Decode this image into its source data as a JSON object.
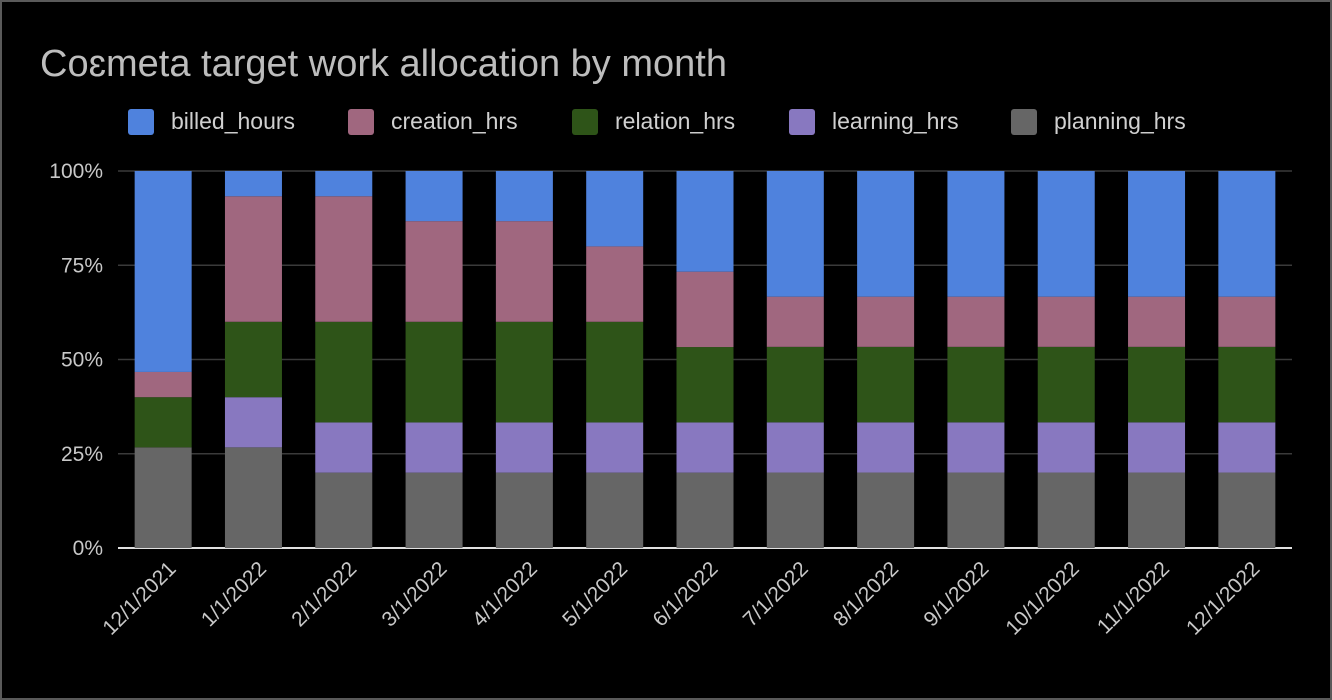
{
  "chart_data": {
    "type": "bar",
    "stacked": true,
    "normalized": true,
    "title": "Coɛmeta target work allocation by month",
    "xlabel": "",
    "ylabel": "",
    "ylim": [
      0,
      1
    ],
    "y_ticks": [
      "0%",
      "25%",
      "50%",
      "75%",
      "100%"
    ],
    "grid": true,
    "legend_position": "top",
    "categories": [
      "12/1/2021",
      "1/1/2022",
      "2/1/2022",
      "3/1/2022",
      "4/1/2022",
      "5/1/2022",
      "6/1/2022",
      "7/1/2022",
      "8/1/2022",
      "9/1/2022",
      "10/1/2022",
      "11/1/2022",
      "12/1/2022"
    ],
    "series": [
      {
        "name": "planning_hrs",
        "color": "#666666",
        "values": [
          0.267,
          0.267,
          0.2,
          0.2,
          0.2,
          0.2,
          0.2,
          0.2,
          0.2,
          0.2,
          0.2,
          0.2,
          0.2
        ]
      },
      {
        "name": "learning_hrs",
        "color": "#8878c0",
        "values": [
          0,
          0.133,
          0.133,
          0.133,
          0.133,
          0.133,
          0.133,
          0.133,
          0.133,
          0.133,
          0.133,
          0.133,
          0.133
        ]
      },
      {
        "name": "relation_hrs",
        "color": "#2e5418",
        "values": [
          0.133,
          0.2,
          0.267,
          0.267,
          0.267,
          0.267,
          0.2,
          0.2,
          0.2,
          0.2,
          0.2,
          0.2,
          0.2
        ]
      },
      {
        "name": "creation_hrs",
        "color": "#a0677f",
        "values": [
          0.067,
          0.333,
          0.333,
          0.267,
          0.267,
          0.2,
          0.2,
          0.133,
          0.133,
          0.133,
          0.133,
          0.133,
          0.133
        ]
      },
      {
        "name": "billed_hours",
        "color": "#4f82dd",
        "values": [
          0.533,
          0.067,
          0.067,
          0.133,
          0.133,
          0.2,
          0.267,
          0.333,
          0.333,
          0.333,
          0.333,
          0.333,
          0.333
        ]
      }
    ],
    "legend_order": [
      "billed_hours",
      "creation_hrs",
      "relation_hrs",
      "learning_hrs",
      "planning_hrs"
    ]
  }
}
